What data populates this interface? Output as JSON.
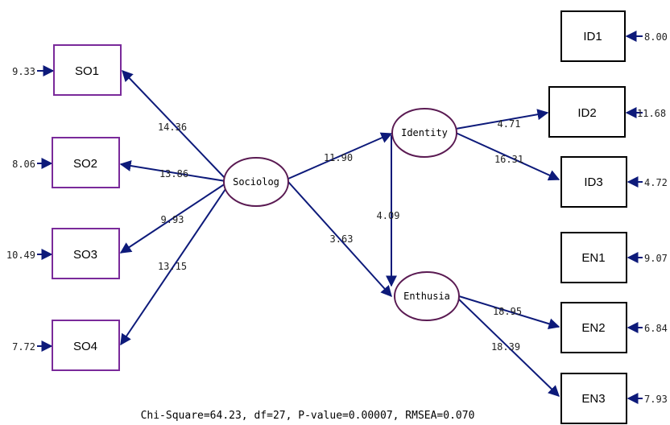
{
  "colors": {
    "path": "#0d1a7a",
    "latent_border": "#5a1a52",
    "so_border": "#7a2a9a",
    "box_border": "#000000",
    "text": "#222222"
  },
  "latent": {
    "sociolog": "Sociolog",
    "identity": "Identity",
    "enthusia": "Enthusia"
  },
  "observed": {
    "so1": "SO1",
    "so2": "SO2",
    "so3": "SO3",
    "so4": "SO4",
    "id1": "ID1",
    "id2": "ID2",
    "id3": "ID3",
    "en1": "EN1",
    "en2": "EN2",
    "en3": "EN3"
  },
  "errors": {
    "so1": "9.33",
    "so2": "8.06",
    "so3": "10.49",
    "so4": "7.72",
    "id1": "8.00",
    "id2": "11.68",
    "id3": "4.72",
    "en1": "9.07",
    "en2": "6.84",
    "en3": "7.93"
  },
  "paths": {
    "soc_so1": "14.36",
    "soc_so2": "13.86",
    "soc_so3": "9.93",
    "soc_so4": "13.15",
    "soc_identity": "11.90",
    "soc_enthusia": "3.63",
    "identity_enthusia": "4.09",
    "identity_id2": "4.71",
    "identity_id3": "16.31",
    "enthusia_en2": "18.95",
    "enthusia_en3": "18.39"
  },
  "fit_text": "Chi-Square=64.23, df=27, P-value=0.00007, RMSEA=0.070"
}
